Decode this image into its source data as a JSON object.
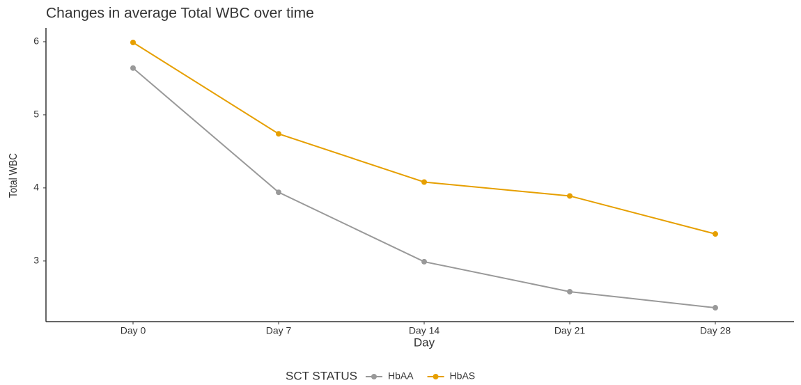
{
  "chart_data": {
    "type": "line",
    "title": "Changes in average Total WBC over time",
    "xlabel": "Day",
    "ylabel": "Total WBC",
    "categories": [
      "Day 0",
      "Day 7",
      "Day 14",
      "Day 21",
      "Day 28"
    ],
    "series": [
      {
        "name": "HbAA",
        "color": "#999999",
        "values": [
          5.64,
          3.94,
          2.99,
          2.58,
          2.36
        ]
      },
      {
        "name": "HbAS",
        "color": "#E69F00",
        "values": [
          5.99,
          4.74,
          4.08,
          3.89,
          3.37
        ]
      }
    ],
    "ylim": [
      2.17,
      6.19
    ],
    "yticks": [
      3,
      4,
      5,
      6
    ],
    "legend_title": "SCT STATUS",
    "legend": "bottom",
    "grid": false
  }
}
